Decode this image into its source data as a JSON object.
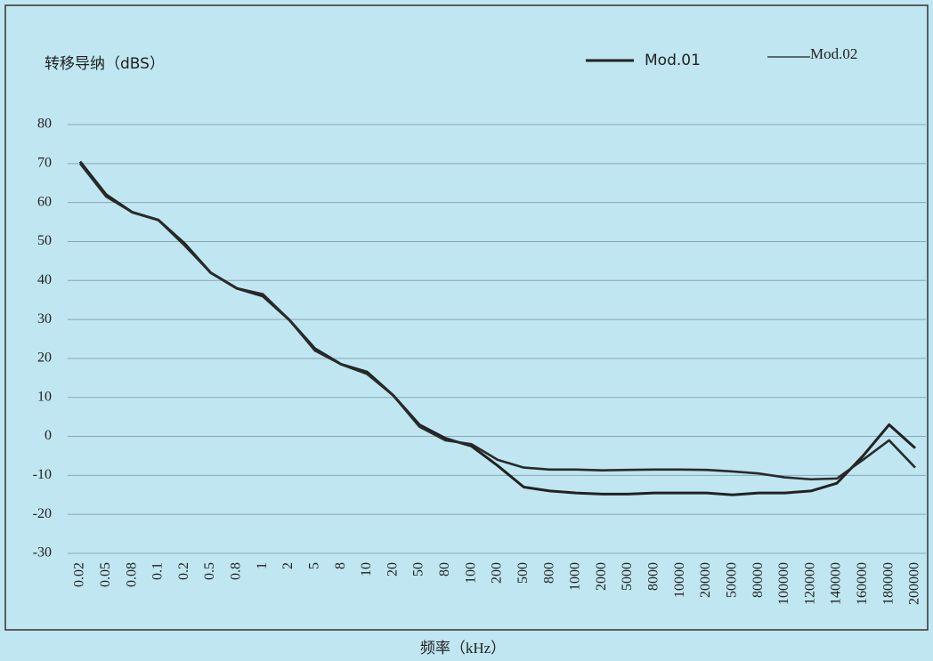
{
  "chart_data": {
    "type": "line",
    "y_label": "转移导纳（dBS）",
    "x_label": "频率（kHz）",
    "categories": [
      "0.02",
      "0.05",
      "0.08",
      "0.1",
      "0.2",
      "0.5",
      "0.8",
      "1",
      "2",
      "5",
      "8",
      "10",
      "20",
      "50",
      "80",
      "100",
      "200",
      "500",
      "800",
      "1000",
      "2000",
      "5000",
      "8000",
      "10000",
      "20000",
      "50000",
      "80000",
      "100000",
      "120000",
      "140000",
      "160000",
      "180000",
      "200000"
    ],
    "series": [
      {
        "name": "Mod.01",
        "color": "#222222",
        "values": [
          70.5,
          62,
          57.5,
          55.5,
          49.5,
          42,
          38,
          36,
          30,
          22.5,
          18.5,
          16.5,
          10.5,
          3,
          -0.5,
          -2.5,
          -7.5,
          -13,
          -14,
          -14.5,
          -14.8,
          -14.8,
          -14.5,
          -14.5,
          -14.5,
          -15,
          -14.5,
          -14.5,
          -14,
          -12,
          -5,
          3,
          -3
        ]
      },
      {
        "name": "Mod.02",
        "color": "#2a2a2a",
        "values": [
          70,
          61.5,
          57.5,
          55.5,
          49,
          42,
          38,
          36.5,
          30,
          22,
          18.5,
          16,
          10.5,
          2.5,
          -1,
          -2,
          -6,
          -8,
          -8.5,
          -8.5,
          -8.7,
          -8.6,
          -8.5,
          -8.5,
          -8.6,
          -9,
          -9.5,
          -10.5,
          -11,
          -10.8,
          -6,
          -1,
          -8
        ]
      }
    ],
    "ylim": [
      -30,
      80
    ],
    "yticks": [
      -30,
      -20,
      -10,
      0,
      10,
      20,
      30,
      40,
      50,
      60,
      70,
      80
    ],
    "grid": true
  }
}
